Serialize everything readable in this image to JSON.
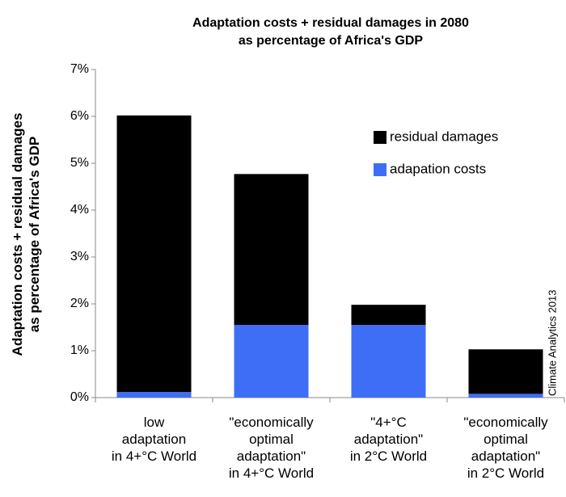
{
  "chart_data": {
    "type": "stacked_bar",
    "title": "Adaptation costs + residual damages in 2080\nas percentage of Africa's GDP",
    "y_label": "Adaptation costs + residual damages\nas percentage of Africa's GDP",
    "categories": [
      "low\nadaptation\nin 4+°C World",
      "\"economically\noptimal\nadaptation\"\nin 4+°C World",
      "\"4+°C\nadaptation\"\nin 2°C World",
      "\"economically\noptimal\nadaptation\"\nin 2°C World"
    ],
    "series": [
      {
        "name": "adapation costs",
        "color": "#3f6ef6",
        "values": [
          0.12,
          1.55,
          1.55,
          0.08
        ]
      },
      {
        "name": "residual damages",
        "color": "#000000",
        "values": [
          5.9,
          3.22,
          0.43,
          0.95
        ]
      }
    ],
    "ylim": [
      0,
      7
    ],
    "yticks": [
      {
        "value": 0,
        "label": "0%"
      },
      {
        "value": 1,
        "label": "1%"
      },
      {
        "value": 2,
        "label": "2%"
      },
      {
        "value": 3,
        "label": "3%"
      },
      {
        "value": 4,
        "label": "4%"
      },
      {
        "value": 5,
        "label": "5%"
      },
      {
        "value": 6,
        "label": "6%"
      },
      {
        "value": 7,
        "label": "7%"
      }
    ],
    "annotation": "Climate Analytics 2013",
    "legend": "upper right"
  }
}
